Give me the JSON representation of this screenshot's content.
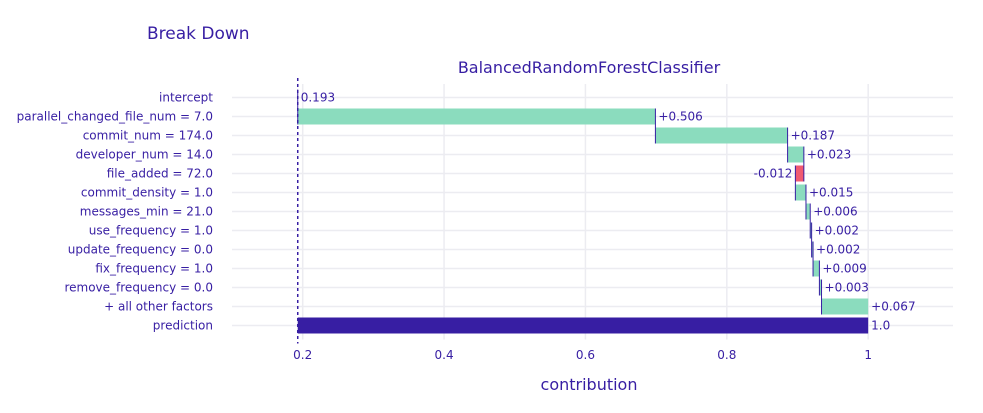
{
  "chart_data": {
    "type": "bar",
    "title": "Break Down",
    "subtitle": "BalancedRandomForestClassifier",
    "xlabel": "contribution",
    "xlim": [
      0.1,
      1.12
    ],
    "xticks": [
      0.2,
      0.4,
      0.6,
      0.8,
      1
    ],
    "xtick_labels": [
      "0.2",
      "0.4",
      "0.6",
      "0.8",
      "1"
    ],
    "intercept_line": 0.193,
    "colors": {
      "positive": "#8bdcbe",
      "negative": "#f05a71",
      "prediction": "#371ea3",
      "text": "#371ea3",
      "grid": "#ececf1",
      "connector": "#371ea3"
    },
    "bars": [
      {
        "label": "intercept",
        "start": 0.193,
        "end": 0.193,
        "kind": "intercept",
        "display": "0.193"
      },
      {
        "label": "parallel_changed_file_num = 7.0",
        "start": 0.193,
        "end": 0.699,
        "kind": "positive",
        "display": "+0.506"
      },
      {
        "label": "commit_num = 174.0",
        "start": 0.699,
        "end": 0.886,
        "kind": "positive",
        "display": "+0.187"
      },
      {
        "label": "developer_num = 14.0",
        "start": 0.886,
        "end": 0.909,
        "kind": "positive",
        "display": "+0.023"
      },
      {
        "label": "file_added = 72.0",
        "start": 0.909,
        "end": 0.897,
        "kind": "negative",
        "display": "-0.012"
      },
      {
        "label": "commit_density = 1.0",
        "start": 0.897,
        "end": 0.912,
        "kind": "positive",
        "display": "+0.015"
      },
      {
        "label": "messages_min = 21.0",
        "start": 0.912,
        "end": 0.918,
        "kind": "positive",
        "display": "+0.006"
      },
      {
        "label": "use_frequency = 1.0",
        "start": 0.918,
        "end": 0.92,
        "kind": "positive",
        "display": "+0.002"
      },
      {
        "label": "update_frequency = 0.0",
        "start": 0.92,
        "end": 0.922,
        "kind": "positive",
        "display": "+0.002"
      },
      {
        "label": "fix_frequency = 1.0",
        "start": 0.922,
        "end": 0.931,
        "kind": "positive",
        "display": "+0.009"
      },
      {
        "label": "remove_frequency = 0.0",
        "start": 0.931,
        "end": 0.934,
        "kind": "positive",
        "display": "+0.003"
      },
      {
        "label": "+ all other factors",
        "start": 0.934,
        "end": 1.0,
        "kind": "positive",
        "display": "+0.067"
      },
      {
        "label": "prediction",
        "start": 0.193,
        "end": 1.0,
        "kind": "prediction",
        "display": "1.0"
      }
    ]
  }
}
